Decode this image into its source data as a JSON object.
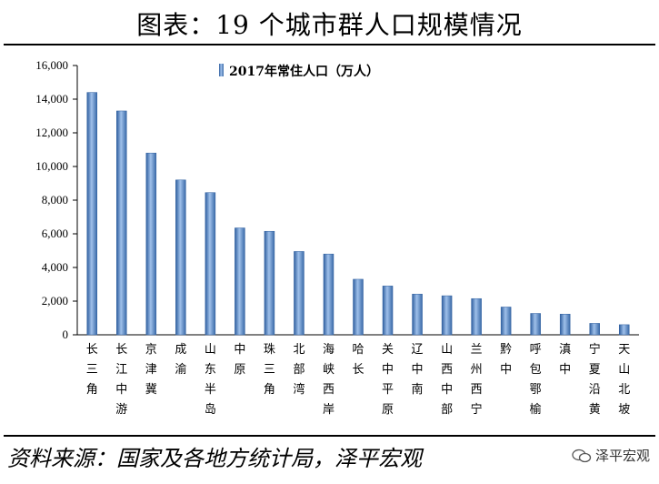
{
  "header": {
    "title": "图表：19 个城市群人口规模情况"
  },
  "footer": {
    "source": "资料来源：国家及各地方统计局，泽平宏观",
    "watermark": "泽平宏观"
  },
  "colors": {
    "bar": "#4f7fbf",
    "bar_light": "#a9c4e6",
    "axis": "#000000"
  },
  "chart_data": {
    "type": "bar",
    "categories": [
      "长三角",
      "长江中游",
      "京津冀",
      "成渝",
      "山东半岛",
      "中原",
      "珠三角",
      "北部湾",
      "海峡西岸",
      "哈长",
      "关中平原",
      "辽中南",
      "山西中部",
      "兰州西宁",
      "黔中",
      "呼包鄂榆",
      "滇中",
      "宁夏沿黄",
      "天山北坡"
    ],
    "series": [
      {
        "name": "2017年常住人口（万人）",
        "values": [
          14400,
          13300,
          10800,
          9200,
          8450,
          6350,
          6150,
          4950,
          4800,
          3300,
          2900,
          2420,
          2320,
          2150,
          1650,
          1270,
          1230,
          680,
          600
        ]
      }
    ],
    "yticks": [
      "0",
      "2,000",
      "4,000",
      "6,000",
      "8,000",
      "10,000",
      "12,000",
      "14,000",
      "16,000"
    ],
    "ylim": [
      0,
      16000
    ],
    "legend": "top-center",
    "grid": false
  }
}
